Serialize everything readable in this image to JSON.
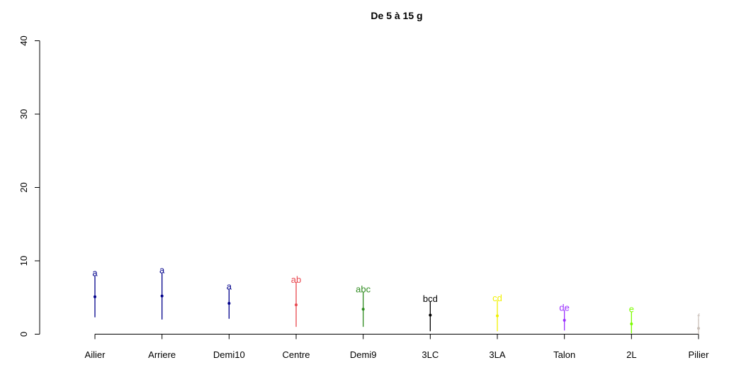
{
  "chart_data": {
    "type": "scatter",
    "title": "De 5 à 15 g",
    "xlabel": "",
    "ylabel": "",
    "ylim": [
      0,
      40
    ],
    "yticks": [
      "0",
      "10",
      "20",
      "30",
      "40"
    ],
    "grid": false,
    "legend": "none",
    "categories": [
      "Ailier",
      "Arriere",
      "Demi10",
      "Centre",
      "Demi9",
      "3LC",
      "3LA",
      "Talon",
      "2L",
      "Pilier"
    ],
    "points": [
      {
        "category": "Ailier",
        "mean": 5.1,
        "low": 2.3,
        "high": 8.0,
        "letters": "a",
        "color": "#00008b"
      },
      {
        "category": "Arriere",
        "mean": 5.2,
        "low": 2.0,
        "high": 8.4,
        "letters": "a",
        "color": "#00008b"
      },
      {
        "category": "Demi10",
        "mean": 4.2,
        "low": 2.1,
        "high": 6.2,
        "letters": "a",
        "color": "#00008b"
      },
      {
        "category": "Centre",
        "mean": 4.0,
        "low": 1.0,
        "high": 7.1,
        "letters": "ab",
        "color": "#e8474f"
      },
      {
        "category": "Demi9",
        "mean": 3.4,
        "low": 1.0,
        "high": 5.8,
        "letters": "abc",
        "color": "#2e8b1f"
      },
      {
        "category": "3LC",
        "mean": 2.6,
        "low": 0.4,
        "high": 4.5,
        "letters": "bcd",
        "color": "#000000"
      },
      {
        "category": "3LA",
        "mean": 2.5,
        "low": 0.4,
        "high": 4.6,
        "letters": "cd",
        "color": "#f0f000"
      },
      {
        "category": "Talon",
        "mean": 1.9,
        "low": 0.5,
        "high": 3.3,
        "letters": "de",
        "color": "#9b30ff"
      },
      {
        "category": "2L",
        "mean": 1.4,
        "low": 0.1,
        "high": 3.1,
        "letters": "e",
        "color": "#7cfc00"
      },
      {
        "category": "Pilier",
        "mean": 0.8,
        "low": 0.0,
        "high": 2.0,
        "letters": "f",
        "color": "#c8beb7"
      }
    ]
  }
}
